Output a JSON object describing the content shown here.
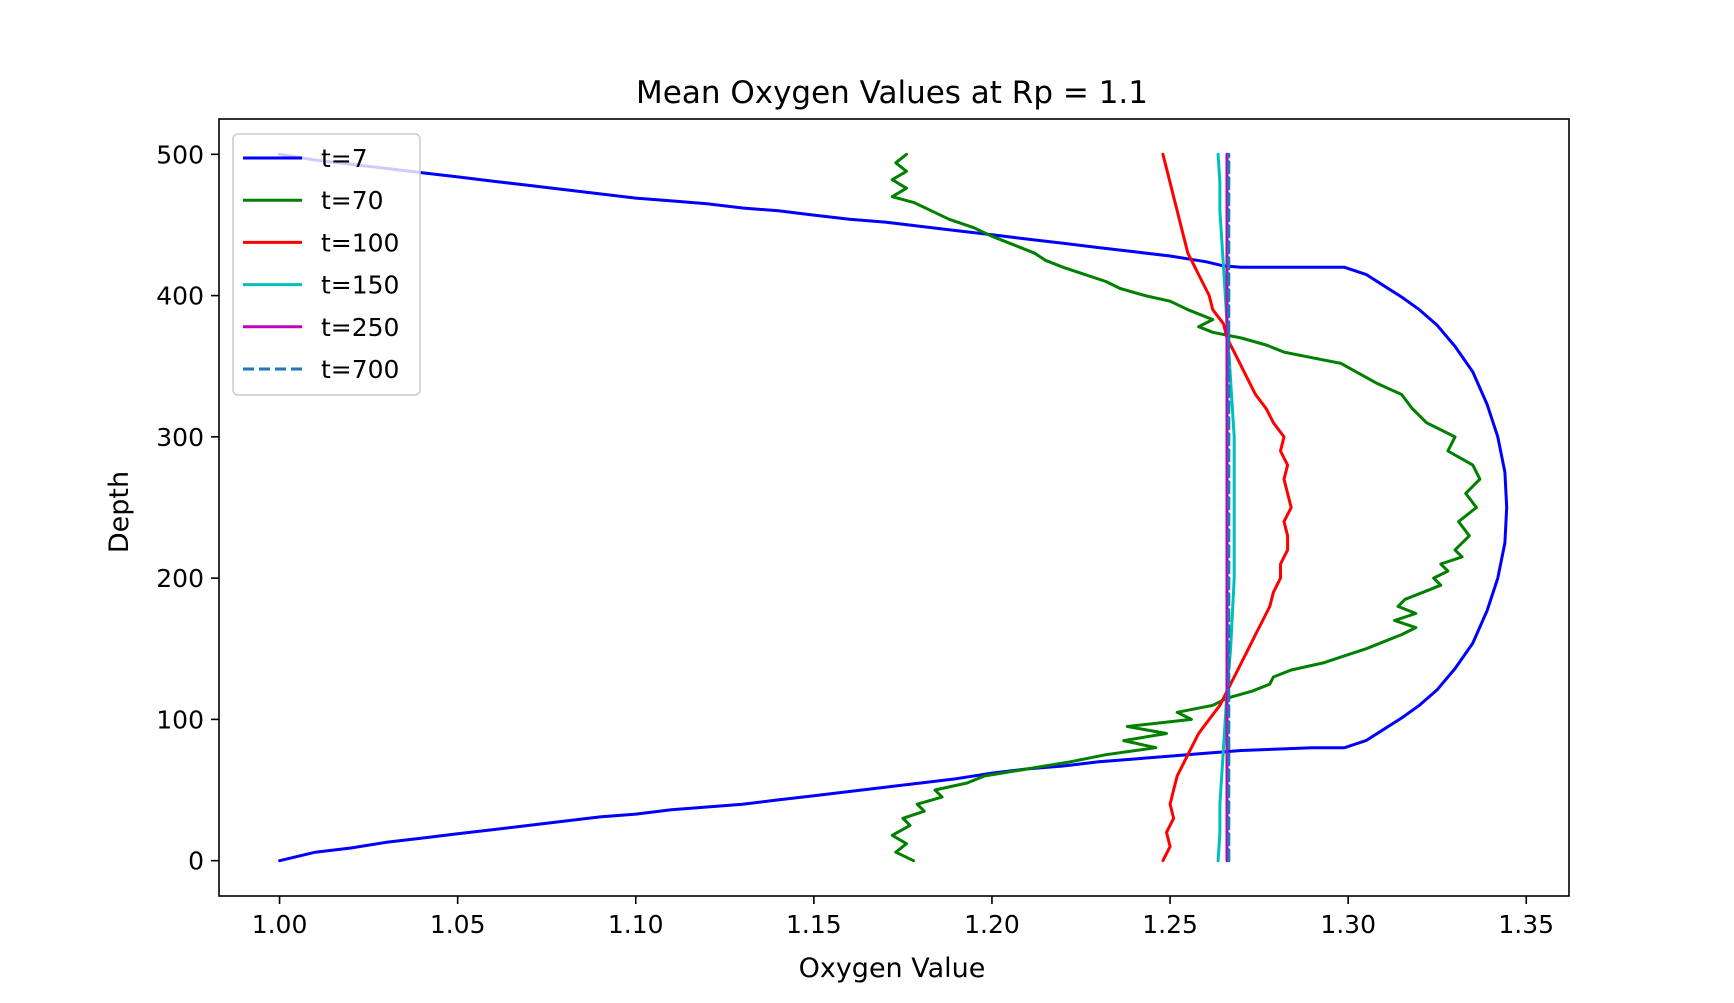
{
  "chart_data": {
    "type": "line",
    "title": "Mean Oxygen Values at Rp = 1.1",
    "xlabel": "Oxygen Value",
    "ylabel": "Depth",
    "xlim": [
      0.983,
      1.362
    ],
    "ylim": [
      -25,
      525
    ],
    "xticks": [
      1.0,
      1.05,
      1.1,
      1.15,
      1.2,
      1.25,
      1.3,
      1.35
    ],
    "xtick_labels": [
      "1.00",
      "1.05",
      "1.10",
      "1.15",
      "1.20",
      "1.25",
      "1.30",
      "1.35"
    ],
    "yticks": [
      0,
      100,
      200,
      300,
      400,
      500
    ],
    "ytick_labels": [
      "0",
      "100",
      "200",
      "300",
      "400",
      "500"
    ],
    "grid": false,
    "legend_position": "upper-left",
    "series": [
      {
        "name": "t=7",
        "color": "#0000ff",
        "style": "solid",
        "points": [
          [
            1.0,
            0
          ],
          [
            1.005,
            3
          ],
          [
            1.01,
            6
          ],
          [
            1.02,
            9
          ],
          [
            1.03,
            13
          ],
          [
            1.04,
            16
          ],
          [
            1.05,
            19
          ],
          [
            1.06,
            22
          ],
          [
            1.07,
            25
          ],
          [
            1.08,
            28
          ],
          [
            1.09,
            31
          ],
          [
            1.1,
            33
          ],
          [
            1.11,
            36
          ],
          [
            1.12,
            38
          ],
          [
            1.13,
            40
          ],
          [
            1.14,
            43
          ],
          [
            1.15,
            46
          ],
          [
            1.16,
            49
          ],
          [
            1.17,
            52
          ],
          [
            1.18,
            55
          ],
          [
            1.19,
            58
          ],
          [
            1.2,
            62
          ],
          [
            1.21,
            65
          ],
          [
            1.22,
            67
          ],
          [
            1.23,
            70
          ],
          [
            1.24,
            72
          ],
          [
            1.25,
            74
          ],
          [
            1.26,
            76
          ],
          [
            1.27,
            78
          ],
          [
            1.28,
            79
          ],
          [
            1.29,
            80
          ],
          [
            1.299,
            80
          ],
          [
            1.305,
            85
          ],
          [
            1.31,
            93
          ],
          [
            1.315,
            101
          ],
          [
            1.32,
            110
          ],
          [
            1.325,
            121
          ],
          [
            1.33,
            136
          ],
          [
            1.335,
            154
          ],
          [
            1.339,
            177
          ],
          [
            1.342,
            200
          ],
          [
            1.344,
            225
          ],
          [
            1.3445,
            250
          ],
          [
            1.344,
            275
          ],
          [
            1.342,
            300
          ],
          [
            1.339,
            323
          ],
          [
            1.335,
            346
          ],
          [
            1.33,
            364
          ],
          [
            1.325,
            379
          ],
          [
            1.32,
            390
          ],
          [
            1.315,
            399
          ],
          [
            1.31,
            407
          ],
          [
            1.305,
            415
          ],
          [
            1.299,
            420
          ],
          [
            1.29,
            420
          ],
          [
            1.28,
            420
          ],
          [
            1.27,
            420
          ],
          [
            1.265,
            421
          ],
          [
            1.26,
            424
          ],
          [
            1.25,
            428
          ],
          [
            1.24,
            431
          ],
          [
            1.23,
            434
          ],
          [
            1.22,
            437
          ],
          [
            1.21,
            440
          ],
          [
            1.2,
            443
          ],
          [
            1.19,
            446
          ],
          [
            1.18,
            449
          ],
          [
            1.17,
            452
          ],
          [
            1.16,
            454
          ],
          [
            1.15,
            457
          ],
          [
            1.14,
            460
          ],
          [
            1.13,
            462
          ],
          [
            1.12,
            465
          ],
          [
            1.11,
            467
          ],
          [
            1.1,
            469
          ],
          [
            1.09,
            472
          ],
          [
            1.08,
            475
          ],
          [
            1.07,
            478
          ],
          [
            1.06,
            481
          ],
          [
            1.05,
            484
          ],
          [
            1.04,
            487
          ],
          [
            1.03,
            490
          ],
          [
            1.02,
            493
          ],
          [
            1.01,
            496
          ],
          [
            1.005,
            498
          ],
          [
            1.0,
            500
          ]
        ]
      },
      {
        "name": "t=70",
        "color": "#008000",
        "style": "solid",
        "points": [
          [
            1.178,
            0
          ],
          [
            1.173,
            6
          ],
          [
            1.176,
            12
          ],
          [
            1.172,
            18
          ],
          [
            1.177,
            25
          ],
          [
            1.175,
            30
          ],
          [
            1.181,
            35
          ],
          [
            1.179,
            40
          ],
          [
            1.186,
            45
          ],
          [
            1.184,
            50
          ],
          [
            1.193,
            55
          ],
          [
            1.198,
            60
          ],
          [
            1.21,
            65
          ],
          [
            1.222,
            70
          ],
          [
            1.232,
            75
          ],
          [
            1.246,
            80
          ],
          [
            1.237,
            85
          ],
          [
            1.249,
            90
          ],
          [
            1.238,
            95
          ],
          [
            1.256,
            100
          ],
          [
            1.252,
            105
          ],
          [
            1.262,
            110
          ],
          [
            1.266,
            115
          ],
          [
            1.273,
            120
          ],
          [
            1.278,
            125
          ],
          [
            1.279,
            130
          ],
          [
            1.284,
            135
          ],
          [
            1.293,
            140
          ],
          [
            1.299,
            145
          ],
          [
            1.305,
            150
          ],
          [
            1.31,
            155
          ],
          [
            1.315,
            160
          ],
          [
            1.319,
            165
          ],
          [
            1.313,
            170
          ],
          [
            1.319,
            175
          ],
          [
            1.314,
            180
          ],
          [
            1.316,
            185
          ],
          [
            1.321,
            190
          ],
          [
            1.326,
            195
          ],
          [
            1.324,
            200
          ],
          [
            1.328,
            205
          ],
          [
            1.326,
            210
          ],
          [
            1.332,
            215
          ],
          [
            1.33,
            220
          ],
          [
            1.334,
            230
          ],
          [
            1.331,
            240
          ],
          [
            1.336,
            250
          ],
          [
            1.333,
            260
          ],
          [
            1.337,
            270
          ],
          [
            1.335,
            280
          ],
          [
            1.328,
            290
          ],
          [
            1.33,
            300
          ],
          [
            1.322,
            310
          ],
          [
            1.318,
            320
          ],
          [
            1.315,
            330
          ],
          [
            1.308,
            338
          ],
          [
            1.303,
            345
          ],
          [
            1.298,
            352
          ],
          [
            1.29,
            356
          ],
          [
            1.282,
            360
          ],
          [
            1.277,
            365
          ],
          [
            1.27,
            370
          ],
          [
            1.262,
            374
          ],
          [
            1.258,
            378
          ],
          [
            1.262,
            383
          ],
          [
            1.255,
            390
          ],
          [
            1.25,
            396
          ],
          [
            1.243,
            400
          ],
          [
            1.236,
            405
          ],
          [
            1.232,
            410
          ],
          [
            1.226,
            415
          ],
          [
            1.22,
            420
          ],
          [
            1.215,
            425
          ],
          [
            1.212,
            430
          ],
          [
            1.206,
            436
          ],
          [
            1.2,
            442
          ],
          [
            1.195,
            448
          ],
          [
            1.188,
            454
          ],
          [
            1.183,
            460
          ],
          [
            1.178,
            466
          ],
          [
            1.172,
            470
          ],
          [
            1.176,
            476
          ],
          [
            1.172,
            482
          ],
          [
            1.176,
            488
          ],
          [
            1.173,
            494
          ],
          [
            1.176,
            500
          ]
        ]
      },
      {
        "name": "t=100",
        "color": "#ff0000",
        "style": "solid",
        "points": [
          [
            1.248,
            0
          ],
          [
            1.25,
            10
          ],
          [
            1.249,
            20
          ],
          [
            1.251,
            30
          ],
          [
            1.25,
            40
          ],
          [
            1.251,
            50
          ],
          [
            1.252,
            60
          ],
          [
            1.254,
            70
          ],
          [
            1.256,
            80
          ],
          [
            1.258,
            90
          ],
          [
            1.261,
            100
          ],
          [
            1.264,
            110
          ],
          [
            1.266,
            120
          ],
          [
            1.268,
            130
          ],
          [
            1.27,
            140
          ],
          [
            1.272,
            150
          ],
          [
            1.274,
            160
          ],
          [
            1.276,
            170
          ],
          [
            1.278,
            180
          ],
          [
            1.279,
            190
          ],
          [
            1.281,
            200
          ],
          [
            1.281,
            210
          ],
          [
            1.283,
            220
          ],
          [
            1.283,
            230
          ],
          [
            1.282,
            240
          ],
          [
            1.284,
            250
          ],
          [
            1.283,
            260
          ],
          [
            1.282,
            270
          ],
          [
            1.283,
            280
          ],
          [
            1.281,
            290
          ],
          [
            1.282,
            300
          ],
          [
            1.279,
            310
          ],
          [
            1.277,
            320
          ],
          [
            1.274,
            330
          ],
          [
            1.272,
            340
          ],
          [
            1.27,
            350
          ],
          [
            1.268,
            360
          ],
          [
            1.266,
            370
          ],
          [
            1.265,
            380
          ],
          [
            1.262,
            390
          ],
          [
            1.261,
            400
          ],
          [
            1.259,
            410
          ],
          [
            1.257,
            420
          ],
          [
            1.255,
            430
          ],
          [
            1.254,
            440
          ],
          [
            1.253,
            450
          ],
          [
            1.252,
            460
          ],
          [
            1.251,
            470
          ],
          [
            1.25,
            480
          ],
          [
            1.249,
            490
          ],
          [
            1.248,
            500
          ]
        ]
      },
      {
        "name": "t=150",
        "color": "#00bfbf",
        "style": "solid",
        "points": [
          [
            1.2635,
            0
          ],
          [
            1.264,
            20
          ],
          [
            1.264,
            40
          ],
          [
            1.2645,
            60
          ],
          [
            1.265,
            80
          ],
          [
            1.2655,
            100
          ],
          [
            1.266,
            120
          ],
          [
            1.267,
            150
          ],
          [
            1.268,
            200
          ],
          [
            1.268,
            250
          ],
          [
            1.268,
            300
          ],
          [
            1.267,
            340
          ],
          [
            1.266,
            380
          ],
          [
            1.2655,
            400
          ],
          [
            1.265,
            420
          ],
          [
            1.2645,
            440
          ],
          [
            1.264,
            460
          ],
          [
            1.264,
            480
          ],
          [
            1.2635,
            500
          ]
        ]
      },
      {
        "name": "t=250",
        "color": "#bf00bf",
        "style": "solid",
        "points": [
          [
            1.266,
            0
          ],
          [
            1.266,
            500
          ]
        ]
      },
      {
        "name": "t=700",
        "color": "#1f77b4",
        "style": "dashed",
        "points": [
          [
            1.2665,
            0
          ],
          [
            1.2665,
            500
          ]
        ]
      }
    ]
  }
}
